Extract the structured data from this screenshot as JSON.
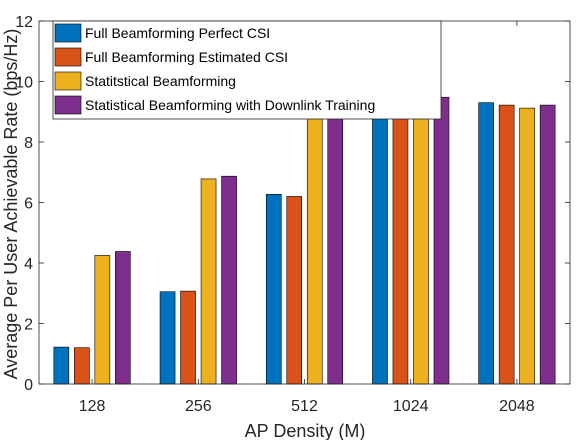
{
  "chart_data": {
    "type": "bar",
    "xlabel": "AP Density (M)",
    "ylabel": "Average Per User Achievable Rate (bps/Hz)",
    "categories": [
      "128",
      "256",
      "512",
      "1024",
      "2048"
    ],
    "ylim": [
      0,
      12
    ],
    "yticks": [
      0,
      2,
      4,
      6,
      8,
      10,
      12
    ],
    "grid": false,
    "legend_position": "top-left",
    "series": [
      {
        "name": "Full Beamforming Perfect CSI",
        "color": "#0072BD",
        "values": [
          1.22,
          3.05,
          6.27,
          8.95,
          9.3
        ]
      },
      {
        "name": "Full Beamforming Estimated CSI",
        "color": "#D95319",
        "values": [
          1.2,
          3.07,
          6.2,
          8.85,
          9.22
        ]
      },
      {
        "name": "Statitstical Beamforming",
        "color": "#EDB120",
        "values": [
          4.25,
          6.78,
          8.95,
          9.25,
          9.12
        ]
      },
      {
        "name": "Statistical Beamforming with Downlink Training",
        "color": "#7E2F8E",
        "values": [
          4.38,
          6.87,
          8.78,
          9.48,
          9.22
        ]
      }
    ]
  }
}
